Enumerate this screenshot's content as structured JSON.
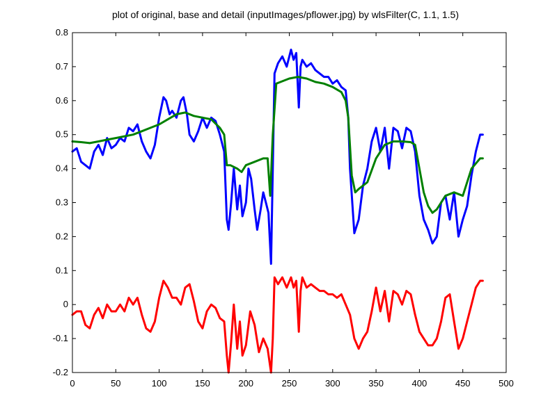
{
  "chart_data": {
    "type": "line",
    "title": "plot of original, base and detail (inputImages/pflower.jpg) by wlsFilter(C, 1.1, 1.5)",
    "xlabel": "",
    "ylabel": "",
    "xlim": [
      0,
      500
    ],
    "ylim": [
      -0.2,
      0.8
    ],
    "xticks": [
      0,
      50,
      100,
      150,
      200,
      250,
      300,
      350,
      400,
      450,
      500
    ],
    "yticks": [
      -0.2,
      -0.1,
      0,
      0.1,
      0.2,
      0.3,
      0.4,
      0.5,
      0.6,
      0.7,
      0.8
    ],
    "grid": false,
    "legend": "none",
    "series": [
      {
        "color": "#0000ff",
        "x": [
          0,
          5,
          10,
          15,
          20,
          25,
          30,
          35,
          40,
          45,
          50,
          55,
          60,
          65,
          70,
          75,
          80,
          85,
          90,
          95,
          100,
          105,
          108,
          112,
          115,
          120,
          125,
          128,
          132,
          135,
          140,
          145,
          150,
          155,
          160,
          165,
          170,
          175,
          178,
          180,
          183,
          186,
          190,
          193,
          196,
          200,
          203,
          206,
          210,
          213,
          217,
          220,
          223,
          226,
          229,
          231,
          233,
          237,
          242,
          247,
          252,
          255,
          258,
          261,
          263,
          265,
          270,
          275,
          280,
          285,
          290,
          295,
          300,
          305,
          310,
          315,
          318,
          320,
          325,
          330,
          335,
          340,
          345,
          350,
          355,
          360,
          365,
          370,
          375,
          380,
          385,
          390,
          395,
          400,
          405,
          410,
          415,
          420,
          425,
          430,
          435,
          440,
          445,
          450,
          455,
          460,
          465,
          470,
          473
        ],
        "y": [
          0.45,
          0.46,
          0.42,
          0.41,
          0.4,
          0.45,
          0.47,
          0.44,
          0.49,
          0.46,
          0.47,
          0.49,
          0.48,
          0.52,
          0.51,
          0.53,
          0.48,
          0.45,
          0.43,
          0.47,
          0.55,
          0.61,
          0.6,
          0.56,
          0.57,
          0.55,
          0.6,
          0.61,
          0.56,
          0.5,
          0.48,
          0.51,
          0.55,
          0.52,
          0.55,
          0.54,
          0.5,
          0.45,
          0.25,
          0.22,
          0.3,
          0.4,
          0.28,
          0.35,
          0.26,
          0.3,
          0.4,
          0.37,
          0.28,
          0.22,
          0.28,
          0.33,
          0.3,
          0.27,
          0.12,
          0.4,
          0.68,
          0.71,
          0.73,
          0.7,
          0.75,
          0.72,
          0.74,
          0.58,
          0.7,
          0.72,
          0.7,
          0.71,
          0.69,
          0.68,
          0.67,
          0.67,
          0.65,
          0.66,
          0.64,
          0.63,
          0.55,
          0.4,
          0.21,
          0.25,
          0.35,
          0.4,
          0.48,
          0.52,
          0.45,
          0.52,
          0.4,
          0.52,
          0.51,
          0.46,
          0.52,
          0.51,
          0.45,
          0.32,
          0.25,
          0.22,
          0.18,
          0.2,
          0.3,
          0.32,
          0.25,
          0.33,
          0.2,
          0.25,
          0.29,
          0.38,
          0.45,
          0.5,
          0.5
        ]
      },
      {
        "color": "#008000",
        "x": [
          0,
          10,
          20,
          30,
          40,
          50,
          60,
          70,
          80,
          90,
          100,
          110,
          120,
          130,
          140,
          150,
          160,
          170,
          175,
          178,
          182,
          190,
          195,
          200,
          210,
          220,
          225,
          228,
          231,
          235,
          240,
          250,
          260,
          270,
          280,
          290,
          300,
          310,
          315,
          318,
          322,
          326,
          330,
          340,
          350,
          360,
          370,
          380,
          390,
          395,
          400,
          405,
          410,
          415,
          420,
          430,
          440,
          450,
          460,
          470,
          473
        ],
        "y": [
          0.48,
          0.478,
          0.475,
          0.48,
          0.485,
          0.49,
          0.495,
          0.5,
          0.51,
          0.52,
          0.53,
          0.545,
          0.56,
          0.565,
          0.555,
          0.55,
          0.545,
          0.52,
          0.5,
          0.41,
          0.41,
          0.4,
          0.39,
          0.41,
          0.42,
          0.43,
          0.43,
          0.32,
          0.5,
          0.65,
          0.655,
          0.665,
          0.67,
          0.665,
          0.655,
          0.65,
          0.64,
          0.625,
          0.6,
          0.55,
          0.38,
          0.33,
          0.34,
          0.36,
          0.43,
          0.47,
          0.48,
          0.48,
          0.478,
          0.47,
          0.4,
          0.33,
          0.29,
          0.27,
          0.28,
          0.32,
          0.33,
          0.32,
          0.4,
          0.43,
          0.43
        ]
      },
      {
        "color": "#ff0000",
        "x": [
          0,
          5,
          10,
          15,
          20,
          25,
          30,
          35,
          40,
          45,
          50,
          55,
          60,
          65,
          70,
          75,
          80,
          85,
          90,
          95,
          100,
          105,
          110,
          115,
          120,
          125,
          130,
          135,
          140,
          145,
          150,
          155,
          160,
          165,
          170,
          175,
          178,
          180,
          183,
          186,
          190,
          193,
          196,
          200,
          205,
          210,
          215,
          220,
          225,
          229,
          231,
          233,
          237,
          242,
          247,
          252,
          255,
          258,
          261,
          263,
          265,
          270,
          275,
          280,
          285,
          290,
          295,
          300,
          305,
          310,
          315,
          320,
          325,
          330,
          335,
          340,
          345,
          350,
          355,
          360,
          365,
          370,
          375,
          380,
          385,
          390,
          395,
          400,
          405,
          410,
          415,
          420,
          425,
          430,
          435,
          440,
          445,
          450,
          455,
          460,
          465,
          470,
          473
        ],
        "y": [
          -0.03,
          -0.02,
          -0.02,
          -0.06,
          -0.07,
          -0.03,
          -0.01,
          -0.04,
          0.0,
          -0.02,
          -0.02,
          0.0,
          -0.02,
          0.02,
          0.0,
          0.02,
          -0.03,
          -0.07,
          -0.08,
          -0.05,
          0.02,
          0.07,
          0.05,
          0.02,
          0.02,
          0.0,
          0.05,
          0.06,
          0.01,
          -0.05,
          -0.07,
          -0.02,
          0.0,
          -0.01,
          -0.04,
          -0.05,
          -0.15,
          -0.2,
          -0.11,
          0.0,
          -0.13,
          -0.05,
          -0.15,
          -0.12,
          -0.02,
          -0.06,
          -0.14,
          -0.1,
          -0.13,
          -0.2,
          -0.1,
          0.08,
          0.06,
          0.08,
          0.05,
          0.08,
          0.05,
          0.07,
          -0.08,
          0.04,
          0.08,
          0.05,
          0.06,
          0.05,
          0.04,
          0.04,
          0.03,
          0.03,
          0.02,
          0.03,
          0.0,
          -0.03,
          -0.1,
          -0.13,
          -0.1,
          -0.08,
          -0.02,
          0.05,
          -0.02,
          0.04,
          -0.05,
          0.04,
          0.03,
          0.0,
          0.04,
          0.03,
          -0.03,
          -0.08,
          -0.1,
          -0.12,
          -0.12,
          -0.1,
          -0.05,
          0.02,
          0.03,
          -0.05,
          -0.13,
          -0.1,
          -0.05,
          0.0,
          0.05,
          0.07,
          0.07
        ]
      }
    ]
  }
}
